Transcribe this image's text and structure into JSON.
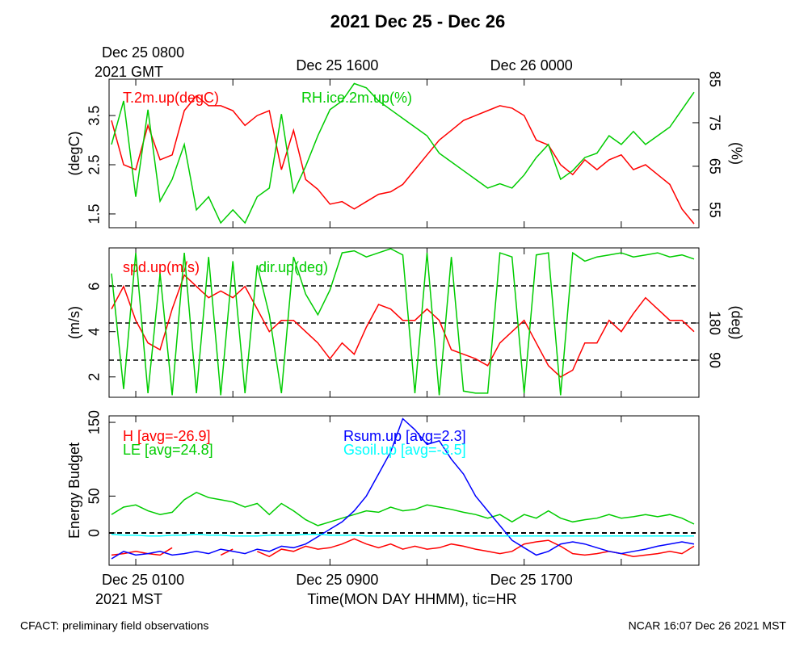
{
  "title": "2021 Dec 25 - Dec 26",
  "footer_left": "CFACT: preliminary field observations",
  "footer_right": "NCAR 16:07 Dec 26 2021 MST",
  "chart_data": [
    {
      "type": "line",
      "xlim": [
        -0.1,
        24.2
      ],
      "x2ticks": [
        {
          "value": 1,
          "label": "Dec 25 0800"
        },
        {
          "value": 9,
          "label": "Dec 25 1600"
        },
        {
          "value": 17,
          "label": "Dec 26 0000"
        }
      ],
      "x2zone": "2021 GMT",
      "ylabel": "(degC)",
      "ylim": [
        1.22,
        4.24
      ],
      "yticks": [
        1.5,
        2.5,
        3.5
      ],
      "y2label": "(%)",
      "y2lim": [
        50.9,
        85
      ],
      "y2ticks": [
        55,
        65,
        75,
        85
      ],
      "x": [
        0,
        0.5,
        1,
        1.5,
        2,
        2.5,
        3,
        3.5,
        4,
        4.5,
        5,
        5.5,
        6,
        6.5,
        7,
        7.5,
        8,
        8.5,
        9,
        9.5,
        10,
        10.5,
        11,
        11.5,
        12,
        12.5,
        13,
        13.5,
        14,
        14.5,
        15,
        15.5,
        16,
        16.5,
        17,
        17.5,
        18,
        18.5,
        19,
        19.5,
        20,
        20.5,
        21,
        21.5,
        22,
        22.5,
        23,
        23.5,
        24
      ],
      "series": [
        {
          "name": "T.2m.up(degC)",
          "color": "#ff0000",
          "values": [
            3.4,
            2.5,
            2.4,
            3.3,
            2.6,
            2.7,
            3.6,
            3.9,
            3.7,
            3.7,
            3.6,
            3.3,
            3.5,
            3.6,
            2.4,
            3.2,
            2.2,
            2.0,
            1.7,
            1.75,
            1.6,
            1.75,
            1.9,
            1.95,
            2.1,
            2.4,
            2.7,
            3.0,
            3.2,
            3.4,
            3.5,
            3.6,
            3.7,
            3.65,
            3.5,
            3.0,
            2.9,
            2.5,
            2.3,
            2.6,
            2.4,
            2.6,
            2.7,
            2.4,
            2.5,
            2.3,
            2.1,
            1.6,
            1.3
          ]
        },
        {
          "name": "RH.ice.2m.up(%)",
          "color": "#00cc00",
          "axis": "y2",
          "values": [
            70,
            80,
            58,
            78,
            57,
            62,
            70,
            55,
            58,
            52,
            55,
            52,
            58,
            60,
            77,
            59,
            65,
            72,
            78,
            80,
            84,
            83,
            80,
            78,
            76,
            74,
            72,
            68,
            66,
            64,
            62,
            60,
            61,
            60,
            63,
            67,
            70,
            62,
            64,
            67,
            68,
            72,
            70,
            73,
            70,
            72,
            74,
            78,
            82
          ]
        }
      ]
    },
    {
      "type": "line",
      "xlim": [
        -0.1,
        24.2
      ],
      "ylabel": "(m/s)",
      "ylim": [
        1.1,
        7.7
      ],
      "yticks": [
        2,
        4,
        6
      ],
      "y2label": "(deg)",
      "y2lim": [
        0,
        362
      ],
      "y2ticks": [
        90,
        180
      ],
      "y2grid": [
        90,
        180,
        270
      ],
      "x": [
        0,
        0.5,
        1,
        1.5,
        2,
        2.5,
        3,
        3.5,
        4,
        4.5,
        5,
        5.5,
        6,
        6.5,
        7,
        7.5,
        8,
        8.5,
        9,
        9.5,
        10,
        10.5,
        11,
        11.5,
        12,
        12.5,
        13,
        13.5,
        14,
        14.5,
        15,
        15.5,
        16,
        16.5,
        17,
        17.5,
        18,
        18.5,
        19,
        19.5,
        20,
        20.5,
        21,
        21.5,
        22,
        22.5,
        23,
        23.5,
        24
      ],
      "series": [
        {
          "name": "spd.up(m/s)",
          "color": "#ff0000",
          "values": [
            5,
            6,
            4.5,
            3.5,
            3.2,
            5,
            6.5,
            6,
            5.5,
            5.8,
            5.5,
            6,
            5,
            4,
            4.5,
            4.5,
            4,
            3.5,
            2.8,
            3.5,
            3,
            4.2,
            5.2,
            5,
            4.5,
            4.5,
            5,
            4.5,
            3.2,
            3,
            2.8,
            2.5,
            3.5,
            4,
            4.5,
            3.5,
            2.5,
            2,
            2.3,
            3.5,
            3.5,
            4.5,
            4,
            4.8,
            5.5,
            5,
            4.5,
            4.5,
            4
          ]
        },
        {
          "name": "dir.up(deg)",
          "color": "#00cc00",
          "axis": "y2",
          "values": [
            300,
            20,
            350,
            10,
            300,
            5,
            350,
            10,
            340,
            5,
            330,
            10,
            320,
            200,
            10,
            340,
            250,
            200,
            260,
            350,
            355,
            340,
            350,
            360,
            345,
            10,
            350,
            5,
            340,
            15,
            10,
            10,
            350,
            340,
            10,
            345,
            350,
            5,
            350,
            330,
            340,
            345,
            350,
            340,
            345,
            350,
            340,
            345,
            335
          ]
        }
      ]
    },
    {
      "type": "line",
      "xlim": [
        -0.1,
        24.2
      ],
      "xticks": [
        {
          "value": 1,
          "label": "Dec 25 0100"
        },
        {
          "value": 9,
          "label": "Dec 25 0900"
        },
        {
          "value": 17,
          "label": "Dec 25 1700"
        }
      ],
      "xminor": [
        5,
        13,
        21
      ],
      "xzone": "2021 MST",
      "xlabel": "Time(MON DAY HHMM), tic=HR",
      "ylabel": "Energy Budget",
      "ylim": [
        -43.8,
        158.8
      ],
      "yticks": [
        0,
        50,
        150
      ],
      "zero_line": true,
      "x": [
        0,
        0.5,
        1,
        1.5,
        2,
        2.5,
        3,
        3.5,
        4,
        4.5,
        5,
        5.5,
        6,
        6.5,
        7,
        7.5,
        8,
        8.5,
        9,
        9.5,
        10,
        10.5,
        11,
        11.5,
        12,
        12.5,
        13,
        13.5,
        14,
        14.5,
        15,
        15.5,
        16,
        16.5,
        17,
        17.5,
        18,
        18.5,
        19,
        19.5,
        20,
        20.5,
        21,
        21.5,
        22,
        22.5,
        23,
        23.5,
        24
      ],
      "series": [
        {
          "name": "H [avg=-26.9]",
          "color": "#ff0000",
          "values": [
            -30,
            -28,
            -25,
            -28,
            -30,
            -20,
            null,
            null,
            null,
            -30,
            -22,
            null,
            -25,
            -32,
            -22,
            -25,
            -18,
            -22,
            -20,
            -15,
            -8,
            -15,
            -20,
            -15,
            -22,
            -18,
            -22,
            -20,
            -15,
            -18,
            -22,
            -25,
            -28,
            -25,
            -15,
            -12,
            -10,
            -18,
            -28,
            -30,
            -28,
            -25,
            -28,
            -32,
            -30,
            -28,
            -25,
            -28,
            -18
          ]
        },
        {
          "name": "LE [avg=24.8]",
          "color": "#00cc00",
          "values": [
            25,
            35,
            38,
            30,
            25,
            28,
            45,
            55,
            48,
            45,
            42,
            35,
            40,
            25,
            40,
            30,
            18,
            10,
            15,
            20,
            25,
            30,
            28,
            35,
            30,
            32,
            38,
            35,
            32,
            28,
            25,
            20,
            25,
            15,
            25,
            20,
            30,
            20,
            15,
            18,
            20,
            25,
            20,
            22,
            25,
            22,
            25,
            20,
            12
          ]
        },
        {
          "name": "Rsum.up [avg=2.3]",
          "color": "#0000ff",
          "values": [
            -35,
            -25,
            -30,
            -28,
            -25,
            -30,
            -28,
            -25,
            -28,
            -22,
            -25,
            -28,
            -22,
            -25,
            -18,
            -20,
            -15,
            -5,
            5,
            15,
            30,
            50,
            80,
            110,
            155,
            140,
            120,
            125,
            100,
            80,
            50,
            30,
            10,
            -10,
            -20,
            -30,
            -25,
            -15,
            -12,
            -15,
            -20,
            -25,
            -28,
            -25,
            -22,
            -18,
            -15,
            -12,
            -15
          ]
        },
        {
          "name": "Gsoil.up [avg=-3.5]",
          "color": "#00ffff",
          "values": [
            -2,
            -3,
            -3,
            -4,
            -4,
            -3,
            -3,
            -2,
            -3,
            -3,
            -4,
            -4,
            -4,
            -3,
            -3,
            -3,
            -2,
            -2,
            -3,
            -3,
            -3,
            -4,
            -4,
            -4,
            -4,
            -4,
            -4,
            -4,
            -4,
            -4,
            -4,
            -4,
            -4,
            -4,
            -4,
            -4,
            -4,
            -4,
            -4,
            -4,
            -4,
            -4,
            -4,
            -4,
            -4,
            -4,
            -4,
            -4,
            -4
          ]
        }
      ]
    }
  ]
}
